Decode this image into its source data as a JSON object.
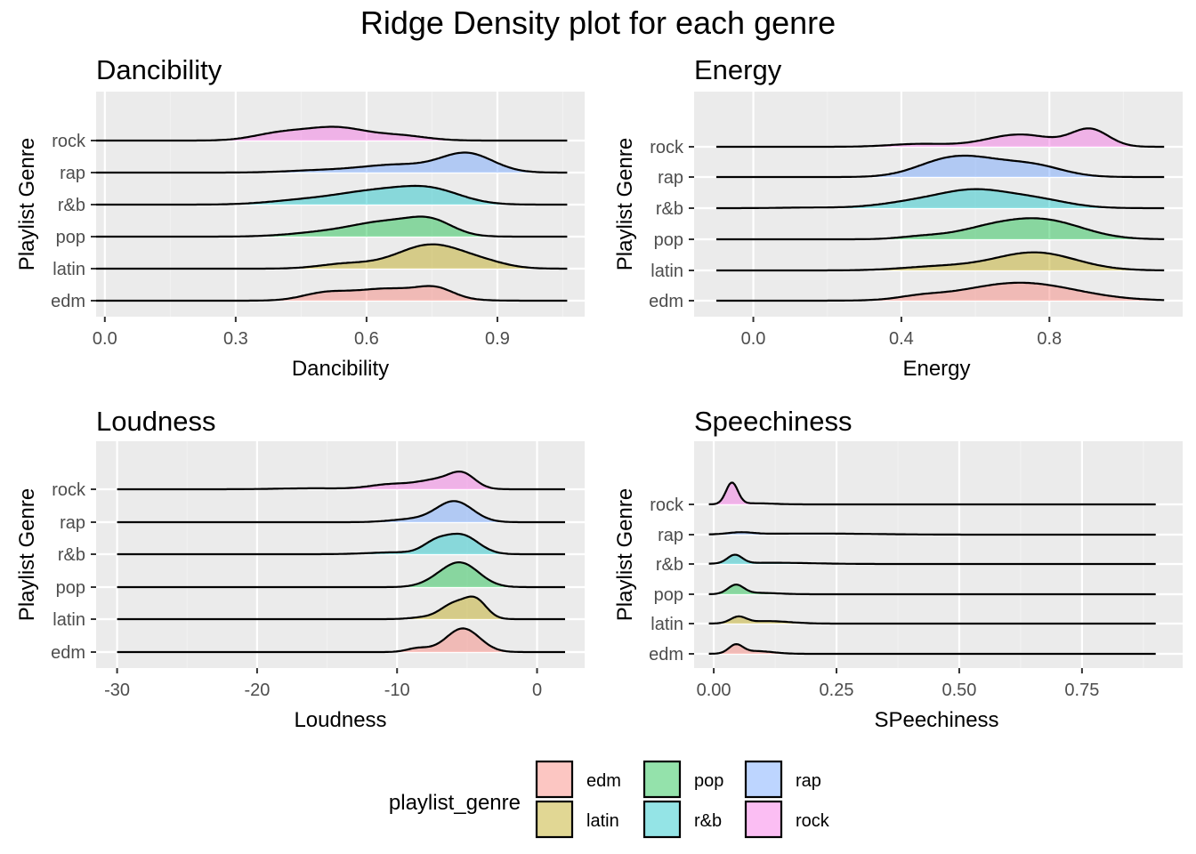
{
  "title": "Ridge Density plot for each genre",
  "legend": {
    "title": "playlist_genre",
    "items": [
      {
        "label": "edm",
        "color": "#F8766D"
      },
      {
        "label": "latin",
        "color": "#B79F00"
      },
      {
        "label": "pop",
        "color": "#00BA38"
      },
      {
        "label": "r&b",
        "color": "#00BFC4"
      },
      {
        "label": "rap",
        "color": "#619CFF"
      },
      {
        "label": "rock",
        "color": "#F564E3"
      }
    ]
  },
  "chart_data": [
    {
      "type": "ridgeline",
      "title": "Dancibility",
      "xlabel": "Dancibility",
      "ylabel": "Playlist Genre",
      "xlim": [
        -0.02,
        1.1
      ],
      "x_ticks": [
        {
          "value": 0.0,
          "label": "0.0"
        },
        {
          "value": 0.3,
          "label": "0.3"
        },
        {
          "value": 0.6,
          "label": "0.6"
        },
        {
          "value": 0.9,
          "label": "0.9"
        }
      ],
      "x_range": [
        -0.02,
        1.06
      ],
      "ridge_height": 2.0,
      "categories": [
        "edm",
        "latin",
        "pop",
        "r&b",
        "rap",
        "rock"
      ],
      "series": [
        {
          "name": "edm",
          "peaks": [
            [
              0.5,
              0.38,
              0.05
            ],
            [
              0.65,
              0.8,
              0.09
            ],
            [
              0.76,
              0.55,
              0.04
            ]
          ]
        },
        {
          "name": "latin",
          "peaks": [
            [
              0.55,
              0.3,
              0.06
            ],
            [
              0.75,
              1.6,
              0.08
            ],
            [
              0.88,
              0.2,
              0.05
            ]
          ]
        },
        {
          "name": "pop",
          "peaks": [
            [
              0.5,
              0.25,
              0.08
            ],
            [
              0.65,
              0.95,
              0.08
            ],
            [
              0.75,
              0.8,
              0.05
            ]
          ]
        },
        {
          "name": "r&b",
          "peaks": [
            [
              0.45,
              0.25,
              0.08
            ],
            [
              0.62,
              0.85,
              0.09
            ],
            [
              0.75,
              0.85,
              0.07
            ]
          ]
        },
        {
          "name": "rap",
          "peaks": [
            [
              0.5,
              0.15,
              0.08
            ],
            [
              0.67,
              0.5,
              0.08
            ],
            [
              0.83,
              1.25,
              0.06
            ]
          ]
        },
        {
          "name": "rock",
          "peaks": [
            [
              0.4,
              0.45,
              0.06
            ],
            [
              0.53,
              0.85,
              0.07
            ],
            [
              0.68,
              0.3,
              0.06
            ]
          ]
        }
      ]
    },
    {
      "type": "ridgeline",
      "title": "Energy",
      "xlabel": "Energy",
      "ylabel": "Playlist Genre",
      "xlim": [
        -0.16,
        1.16
      ],
      "x_ticks": [
        {
          "value": 0.0,
          "label": "0.0"
        },
        {
          "value": 0.4,
          "label": "0.4"
        },
        {
          "value": 0.8,
          "label": "0.8"
        }
      ],
      "x_range": [
        -0.1,
        1.11
      ],
      "ridge_height": 1.6,
      "categories": [
        "edm",
        "latin",
        "pop",
        "r&b",
        "rap",
        "rock"
      ],
      "series": [
        {
          "name": "edm",
          "peaks": [
            [
              0.45,
              0.15,
              0.06
            ],
            [
              0.72,
              0.95,
              0.15
            ]
          ]
        },
        {
          "name": "latin",
          "peaks": [
            [
              0.5,
              0.2,
              0.1
            ],
            [
              0.76,
              0.95,
              0.11
            ]
          ]
        },
        {
          "name": "pop",
          "peaks": [
            [
              0.45,
              0.12,
              0.06
            ],
            [
              0.65,
              0.6,
              0.1
            ],
            [
              0.8,
              0.85,
              0.1
            ]
          ]
        },
        {
          "name": "r&b",
          "peaks": [
            [
              0.15,
              0.03,
              0.08
            ],
            [
              0.45,
              0.35,
              0.1
            ],
            [
              0.6,
              0.8,
              0.09
            ],
            [
              0.76,
              0.45,
              0.09
            ]
          ]
        },
        {
          "name": "rap",
          "peaks": [
            [
              0.5,
              0.5,
              0.08
            ],
            [
              0.6,
              0.8,
              0.09
            ],
            [
              0.76,
              0.55,
              0.08
            ]
          ]
        },
        {
          "name": "rock",
          "peaks": [
            [
              0.45,
              0.15,
              0.08
            ],
            [
              0.72,
              0.65,
              0.09
            ],
            [
              0.91,
              0.9,
              0.05
            ]
          ]
        }
      ]
    },
    {
      "type": "ridgeline",
      "title": "Loudness",
      "xlabel": "Loudness",
      "ylabel": "Playlist Genre",
      "xlim": [
        -31.5,
        3.4
      ],
      "x_ticks": [
        {
          "value": -30,
          "label": "-30"
        },
        {
          "value": -20,
          "label": "-20"
        },
        {
          "value": -10,
          "label": "-10"
        },
        {
          "value": 0,
          "label": "0"
        }
      ],
      "x_range": [
        -30,
        2
      ],
      "ridge_height": 0.32,
      "categories": [
        "edm",
        "latin",
        "pop",
        "r&b",
        "rap",
        "rock"
      ],
      "series": [
        {
          "name": "edm",
          "peaks": [
            [
              -8.5,
              0.04,
              0.8
            ],
            [
              -5.3,
              0.25,
              1.2
            ]
          ]
        },
        {
          "name": "latin",
          "peaks": [
            [
              -8.0,
              0.02,
              1.0
            ],
            [
              -6.0,
              0.15,
              0.9
            ],
            [
              -4.4,
              0.2,
              0.8
            ]
          ]
        },
        {
          "name": "pop",
          "peaks": [
            [
              -7.0,
              0.05,
              1.2
            ],
            [
              -5.4,
              0.24,
              1.3
            ]
          ]
        },
        {
          "name": "r&b",
          "peaks": [
            [
              -10.0,
              0.02,
              2.0
            ],
            [
              -7.3,
              0.1,
              0.9
            ],
            [
              -5.4,
              0.2,
              1.2
            ]
          ]
        },
        {
          "name": "rap",
          "peaks": [
            [
              -9.0,
              0.03,
              1.5
            ],
            [
              -5.9,
              0.22,
              1.3
            ]
          ]
        },
        {
          "name": "rock",
          "peaks": [
            [
              -16.0,
              0.01,
              2.5
            ],
            [
              -10.5,
              0.05,
              1.5
            ],
            [
              -7.0,
              0.1,
              1.5
            ],
            [
              -5.3,
              0.13,
              0.9
            ]
          ]
        }
      ]
    },
    {
      "type": "ridgeline",
      "title": "Speechiness",
      "xlabel": "SPeechiness",
      "ylabel": "Playlist Genre",
      "xlim": [
        -0.04,
        0.955
      ],
      "x_ticks": [
        {
          "value": 0.0,
          "label": "0.00"
        },
        {
          "value": 0.25,
          "label": "0.25"
        },
        {
          "value": 0.5,
          "label": "0.50"
        },
        {
          "value": 0.75,
          "label": "0.75"
        }
      ],
      "x_range": [
        -0.01,
        0.9
      ],
      "ridge_height": 22,
      "categories": [
        "edm",
        "latin",
        "pop",
        "r&b",
        "rap",
        "rock"
      ],
      "series": [
        {
          "name": "edm",
          "peaks": [
            [
              0.045,
              6.0,
              0.014
            ],
            [
              0.085,
              2.0,
              0.035
            ]
          ]
        },
        {
          "name": "latin",
          "peaks": [
            [
              0.05,
              4.5,
              0.016
            ],
            [
              0.11,
              1.8,
              0.045
            ]
          ]
        },
        {
          "name": "pop",
          "peaks": [
            [
              0.045,
              6.5,
              0.016
            ],
            [
              0.09,
              1.0,
              0.04
            ]
          ]
        },
        {
          "name": "r&b",
          "peaks": [
            [
              0.043,
              6.2,
              0.015
            ],
            [
              0.12,
              0.9,
              0.08
            ]
          ]
        },
        {
          "name": "rap",
          "peaks": [
            [
              0.055,
              1.4,
              0.025
            ],
            [
              0.2,
              0.8,
              0.12
            ]
          ]
        },
        {
          "name": "rock",
          "peaks": [
            [
              0.037,
              15.5,
              0.012
            ],
            [
              0.08,
              0.8,
              0.04
            ]
          ]
        }
      ]
    }
  ]
}
